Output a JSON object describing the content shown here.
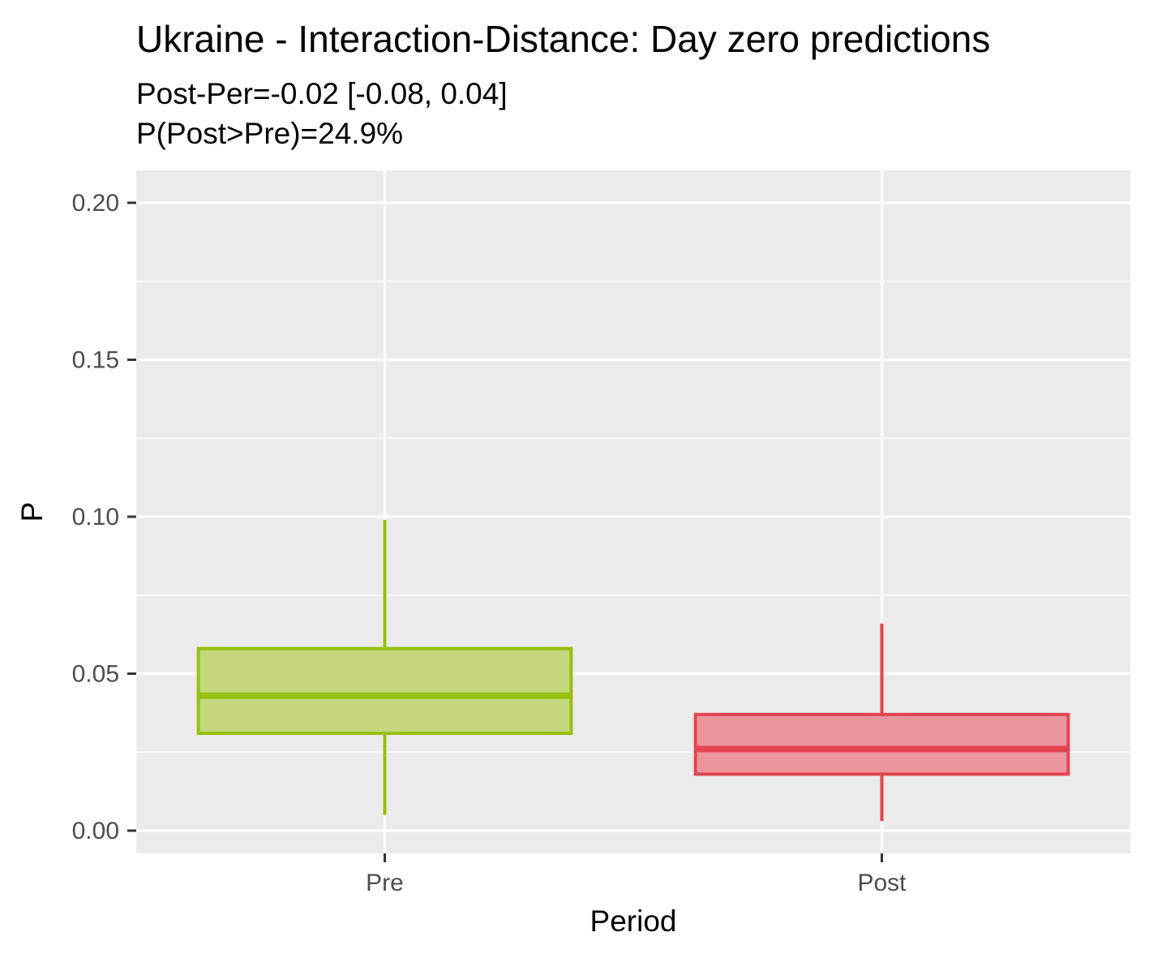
{
  "chart_data": {
    "type": "boxplot",
    "title": "Ukraine - Interaction-Distance: Day zero predictions",
    "subtitle_lines": [
      "Post-Per=-0.02 [-0.08, 0.04]",
      "P(Post>Pre)=24.9%"
    ],
    "xlabel": "Period",
    "ylabel": "P",
    "categories": [
      "Pre",
      "Post"
    ],
    "ylim": [
      -0.007,
      0.21
    ],
    "yticks": [
      0.0,
      0.05,
      0.1,
      0.15,
      0.2
    ],
    "ytick_labels": [
      "0.00",
      "0.05",
      "0.10",
      "0.15",
      "0.20"
    ],
    "grid": true,
    "background": "#ebebeb",
    "boxes": [
      {
        "category": "Pre",
        "whisker_low": 0.005,
        "q1": 0.031,
        "median": 0.043,
        "q3": 0.058,
        "whisker_high": 0.099,
        "fill": "#c4d77f",
        "stroke": "#98bf0c"
      },
      {
        "category": "Post",
        "whisker_low": 0.003,
        "q1": 0.018,
        "median": 0.026,
        "q3": 0.037,
        "whisker_high": 0.066,
        "fill": "#eb959d",
        "stroke": "#e34550"
      }
    ]
  }
}
